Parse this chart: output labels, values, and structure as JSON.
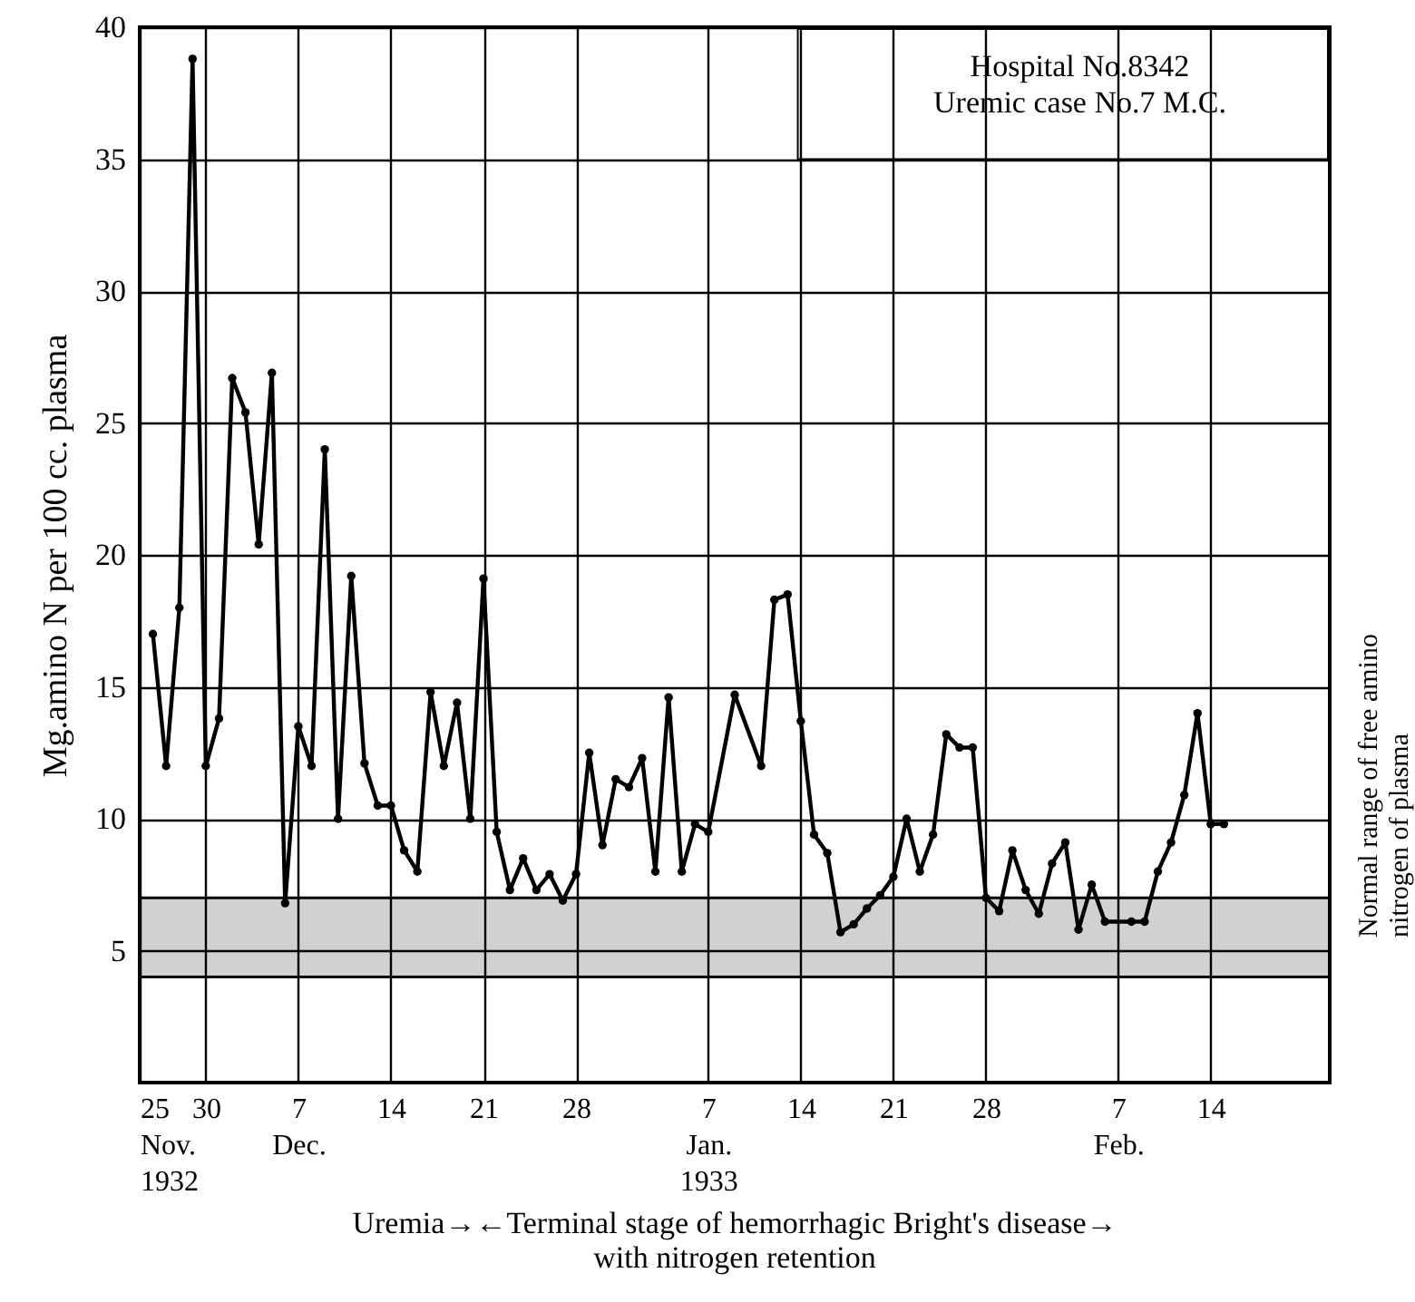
{
  "chart_data": {
    "type": "line",
    "ylabel": "Mg.amino N per 100 cc. plasma",
    "annotations": [
      "Hospital No.8342\nUremic case No.7  M.C.",
      "Uremia→←Terminal stage of hemorrhagic Bright's disease→\nwith nitrogen retention"
    ],
    "x": [
      "1932-11-26",
      "1932-11-27",
      "1932-11-28",
      "1932-11-29",
      "1932-11-30",
      "1932-12-01",
      "1932-12-02",
      "1932-12-03",
      "1932-12-04",
      "1932-12-05",
      "1932-12-06",
      "1932-12-07",
      "1932-12-08",
      "1932-12-09",
      "1932-12-10",
      "1932-12-11",
      "1932-12-12",
      "1932-12-13",
      "1932-12-14",
      "1932-12-15",
      "1932-12-16",
      "1932-12-17",
      "1932-12-18",
      "1932-12-19",
      "1932-12-20",
      "1932-12-21",
      "1932-12-22",
      "1932-12-23",
      "1932-12-24",
      "1932-12-25",
      "1932-12-26",
      "1932-12-27",
      "1932-12-28",
      "1932-12-29",
      "1932-12-30",
      "1932-12-31",
      "1933-01-01",
      "1933-01-02",
      "1933-01-03",
      "1933-01-04",
      "1933-01-05",
      "1933-01-06",
      "1933-01-07",
      "1933-01-09",
      "1933-01-11",
      "1933-01-12",
      "1933-01-13",
      "1933-01-14",
      "1933-01-15",
      "1933-01-16",
      "1933-01-17",
      "1933-01-18",
      "1933-01-19",
      "1933-01-20",
      "1933-01-21",
      "1933-01-22",
      "1933-01-23",
      "1933-01-24",
      "1933-01-25",
      "1933-01-26",
      "1933-01-27",
      "1933-01-28",
      "1933-01-29",
      "1933-01-30",
      "1933-01-31",
      "1933-02-01",
      "1933-02-02",
      "1933-02-03",
      "1933-02-04",
      "1933-02-05",
      "1933-02-06",
      "1933-02-08",
      "1933-02-09",
      "1933-02-10",
      "1933-02-11",
      "1933-02-12",
      "1933-02-13",
      "1933-02-14",
      "1933-02-15"
    ],
    "series": [
      {
        "color": "#000000",
        "values": [
          17,
          12,
          18,
          38.8,
          12,
          13.8,
          26.7,
          25.4,
          20.4,
          26.9,
          6.8,
          13.5,
          12,
          24,
          10,
          19.2,
          12.1,
          10.5,
          10.5,
          8.8,
          8,
          14.8,
          12,
          14.4,
          10,
          19.1,
          9.5,
          7.3,
          8.5,
          7.3,
          7.9,
          6.9,
          7.9,
          12.5,
          9,
          11.5,
          11.2,
          12.3,
          8,
          14.6,
          8,
          9.8,
          9.5,
          14.7,
          12,
          18.3,
          18.5,
          13.7,
          9.4,
          8.7,
          5.7,
          6,
          6.6,
          7.1,
          7.8,
          10,
          8,
          9.4,
          13.2,
          12.7,
          12.7,
          7,
          6.5,
          8.8,
          7.3,
          6.4,
          8.3,
          9.1,
          5.8,
          7.5,
          6.1,
          6.1,
          6.1,
          8,
          9.1,
          10.9,
          14,
          9.8,
          9.8
        ]
      }
    ],
    "xlim": [
      "1932-11-25",
      "1933-02-23"
    ],
    "xticks": [
      {
        "value": "1932-11-25",
        "label": "25\nNov.\n1932"
      },
      {
        "value": "1932-11-30",
        "label": "30"
      },
      {
        "value": "1932-12-07",
        "label": "7\nDec."
      },
      {
        "value": "1932-12-14",
        "label": "14"
      },
      {
        "value": "1932-12-21",
        "label": "21"
      },
      {
        "value": "1932-12-28",
        "label": "28"
      },
      {
        "value": "1933-01-07",
        "label": "7\nJan.\n1933"
      },
      {
        "value": "1933-01-14",
        "label": "14"
      },
      {
        "value": "1933-01-21",
        "label": "21"
      },
      {
        "value": "1933-01-28",
        "label": "28"
      },
      {
        "value": "1933-02-07",
        "label": "7\nFeb."
      },
      {
        "value": "1933-02-14",
        "label": "14"
      }
    ],
    "ylim": [
      0,
      40
    ],
    "yticks": [
      5,
      10,
      15,
      20,
      25,
      30,
      35,
      40
    ],
    "grid": true,
    "marker": "circle",
    "line_style": "solid",
    "bands": [
      {
        "axis": "y",
        "from": 4,
        "to": 7,
        "label": "Normal range of free amino\nnitrogen of plasma",
        "color": "#000000"
      }
    ]
  }
}
